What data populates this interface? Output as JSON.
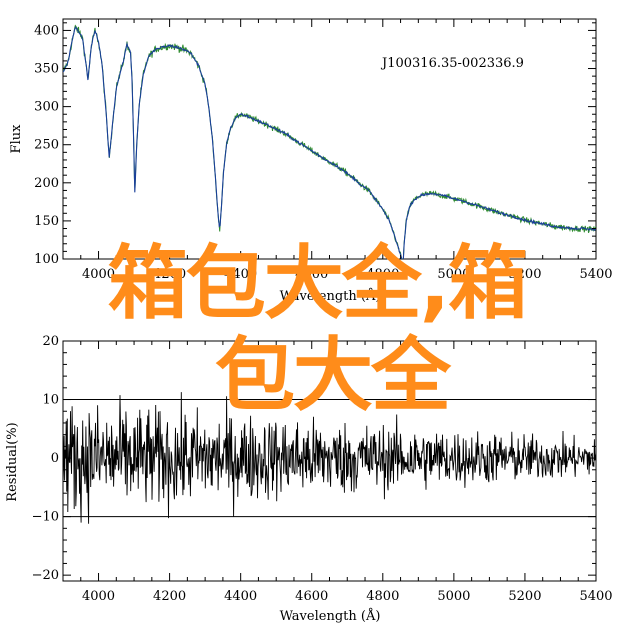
{
  "chart_data": [
    {
      "type": "line",
      "annotation": "J100316.35-002336.9",
      "xlabel": "Wavelength (Å)",
      "ylabel": "Flux",
      "xlim": [
        3900,
        5400
      ],
      "ylim": [
        100,
        415
      ],
      "x_ticks": [
        "4000",
        "4200",
        "4400",
        "4600",
        "4800",
        "5000",
        "5200",
        "5400"
      ],
      "y_ticks": [
        "100",
        "150",
        "200",
        "250",
        "300",
        "350",
        "400"
      ],
      "grid": false,
      "series": [
        {
          "color": "#2e8b2e",
          "role": "observed"
        },
        {
          "color": "#1a3f9a",
          "role": "model"
        }
      ],
      "x": [
        3900,
        3915,
        3925,
        3935,
        3945,
        3955,
        3965,
        3970,
        3980,
        3990,
        4000,
        4010,
        4020,
        4030,
        4040,
        4050,
        4070,
        4080,
        4090,
        4095,
        4102,
        4108,
        4115,
        4125,
        4140,
        4160,
        4180,
        4200,
        4220,
        4240,
        4260,
        4280,
        4300,
        4310,
        4320,
        4330,
        4336,
        4341,
        4346,
        4352,
        4360,
        4370,
        4385,
        4400,
        4420,
        4440,
        4460,
        4480,
        4500,
        4520,
        4540,
        4560,
        4580,
        4600,
        4620,
        4640,
        4660,
        4680,
        4700,
        4720,
        4740,
        4760,
        4780,
        4800,
        4820,
        4830,
        4840,
        4850,
        4857,
        4861,
        4866,
        4875,
        4885,
        4900,
        4920,
        4940,
        4960,
        4980,
        5000,
        5020,
        5040,
        5060,
        5080,
        5100,
        5120,
        5140,
        5160,
        5180,
        5200,
        5220,
        5240,
        5260,
        5280,
        5300,
        5320,
        5340,
        5360,
        5380,
        5400
      ],
      "values": [
        345,
        360,
        385,
        405,
        398,
        390,
        355,
        335,
        380,
        400,
        385,
        355,
        300,
        233,
        280,
        325,
        360,
        382,
        372,
        330,
        187,
        255,
        305,
        340,
        365,
        375,
        378,
        380,
        378,
        375,
        370,
        355,
        330,
        300,
        260,
        200,
        160,
        138,
        170,
        215,
        250,
        270,
        285,
        290,
        287,
        283,
        279,
        275,
        270,
        266,
        260,
        254,
        248,
        242,
        236,
        230,
        225,
        219,
        212,
        205,
        197,
        190,
        178,
        165,
        148,
        135,
        120,
        105,
        95,
        125,
        150,
        168,
        176,
        182,
        185,
        186,
        184,
        182,
        179,
        177,
        174,
        171,
        168,
        165,
        162,
        159,
        157,
        154,
        151,
        149,
        147,
        145,
        143,
        142,
        141,
        140,
        140,
        139,
        139
      ]
    },
    {
      "type": "line",
      "xlabel": "Wavelength (Å)",
      "ylabel": "Residual(%)",
      "xlim": [
        3900,
        5400
      ],
      "ylim": [
        -21,
        20
      ],
      "x_ticks": [
        "4000",
        "4200",
        "4400",
        "4600",
        "4800",
        "5000",
        "5200",
        "5400"
      ],
      "y_ticks": [
        "20",
        "10",
        "0",
        "−10",
        "−20"
      ],
      "reference_lines": [
        10,
        -10
      ],
      "grid": false,
      "series": [
        {
          "color": "#000000",
          "role": "residual",
          "noise_amplitude_start": 9,
          "noise_amplitude_end": 3
        }
      ]
    }
  ],
  "overlay": {
    "line1": "箱包大全,箱",
    "line2": "包大全",
    "color": "#ff8c1a"
  }
}
